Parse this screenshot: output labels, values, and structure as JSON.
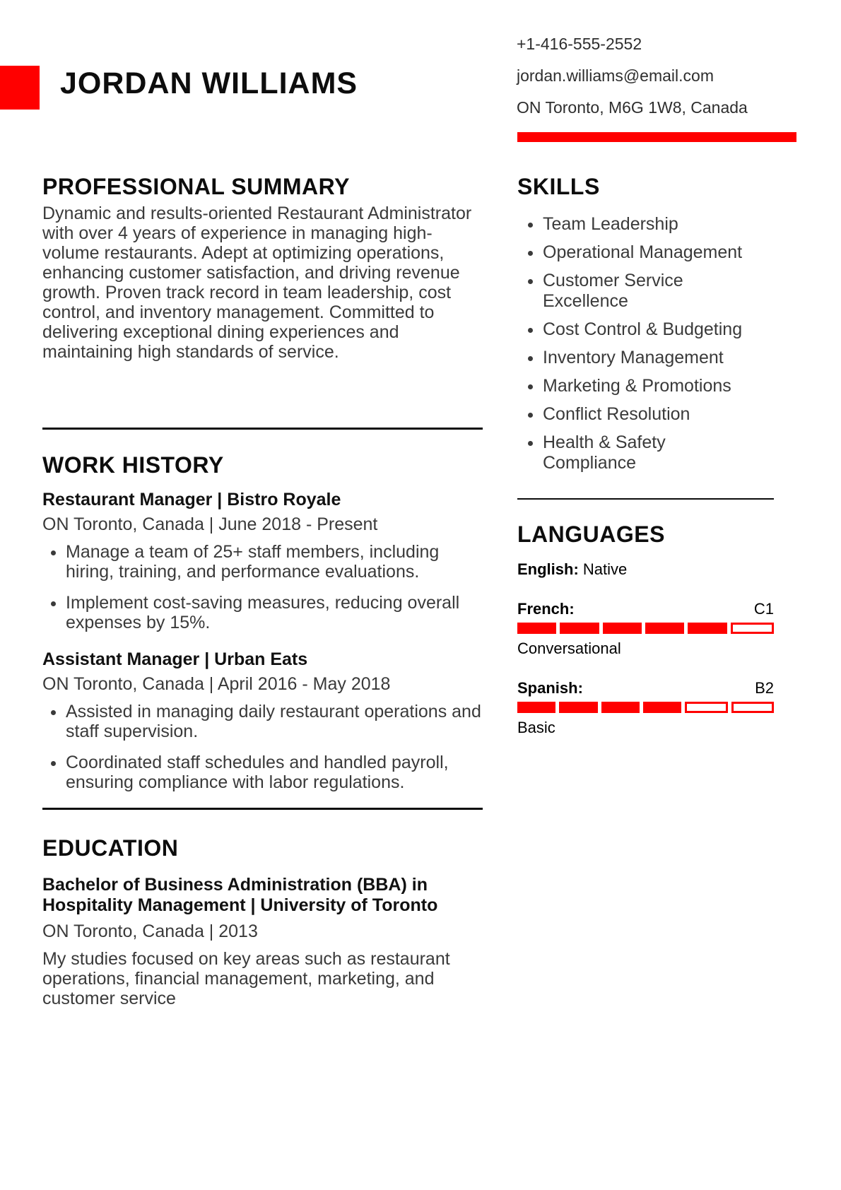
{
  "colors": {
    "accent": "#ff0000",
    "heading": "#0d0d0d",
    "body_text": "#3a3a3a"
  },
  "header": {
    "name": "JORDAN WILLIAMS",
    "contact": {
      "phone": "+1-416-555-2552",
      "email": "jordan.williams@email.com",
      "address": "ON Toronto, M6G 1W8, Canada"
    }
  },
  "left": {
    "summary": {
      "heading": "PROFESSIONAL SUMMARY",
      "body": "Dynamic and results-oriented Restaurant Administrator with over 4 years of experience in managing high-volume restaurants. Adept at optimizing operations, enhancing customer satisfaction, and driving revenue growth. Proven track record in team leadership, cost control, and inventory management. Committed to delivering exceptional dining experiences and maintaining high standards of service."
    },
    "work": {
      "heading": "WORK HISTORY",
      "jobs": [
        {
          "title": "Restaurant Manager | Bistro Royale",
          "meta": "ON Toronto, Canada | June 2018 - Present",
          "bullets": [
            "Manage a team of 25+ staff members, including hiring, training, and performance evaluations.",
            "Implement cost-saving measures, reducing overall expenses by 15%."
          ]
        },
        {
          "title": "Assistant Manager | Urban Eats",
          "meta": "ON Toronto, Canada | April 2016 - May 2018",
          "bullets": [
            "Assisted in managing daily restaurant operations and staff supervision.",
            "Coordinated staff schedules and handled payroll, ensuring compliance with labor regulations."
          ]
        }
      ]
    },
    "education": {
      "heading": "EDUCATION",
      "degree_lines": [
        "Bachelor of Business Administration (BBA) in",
        "Hospitality Management | University of Toronto"
      ],
      "meta": "ON Toronto, Canada | 2013",
      "description": "My studies focused on key areas such as restaurant operations, financial management, marketing, and customer service"
    }
  },
  "right": {
    "skills": {
      "heading": "SKILLS",
      "items": [
        "Team Leadership",
        "Operational Management",
        "Customer Service Excellence",
        "Cost Control & Budgeting",
        "Inventory Management",
        "Marketing & Promotions",
        "Conflict Resolution",
        "Health & Safety Compliance"
      ]
    },
    "languages": {
      "heading": "LANGUAGES",
      "items": [
        {
          "name": "English:",
          "level_text": "Native"
        },
        {
          "name": "French:",
          "cefr": "C1",
          "proficiency": "Conversational",
          "segments_total": 6,
          "segments_filled": 5
        },
        {
          "name": "Spanish:",
          "cefr": "B2",
          "proficiency": "Basic",
          "segments_total": 6,
          "segments_filled": 4
        }
      ]
    }
  }
}
